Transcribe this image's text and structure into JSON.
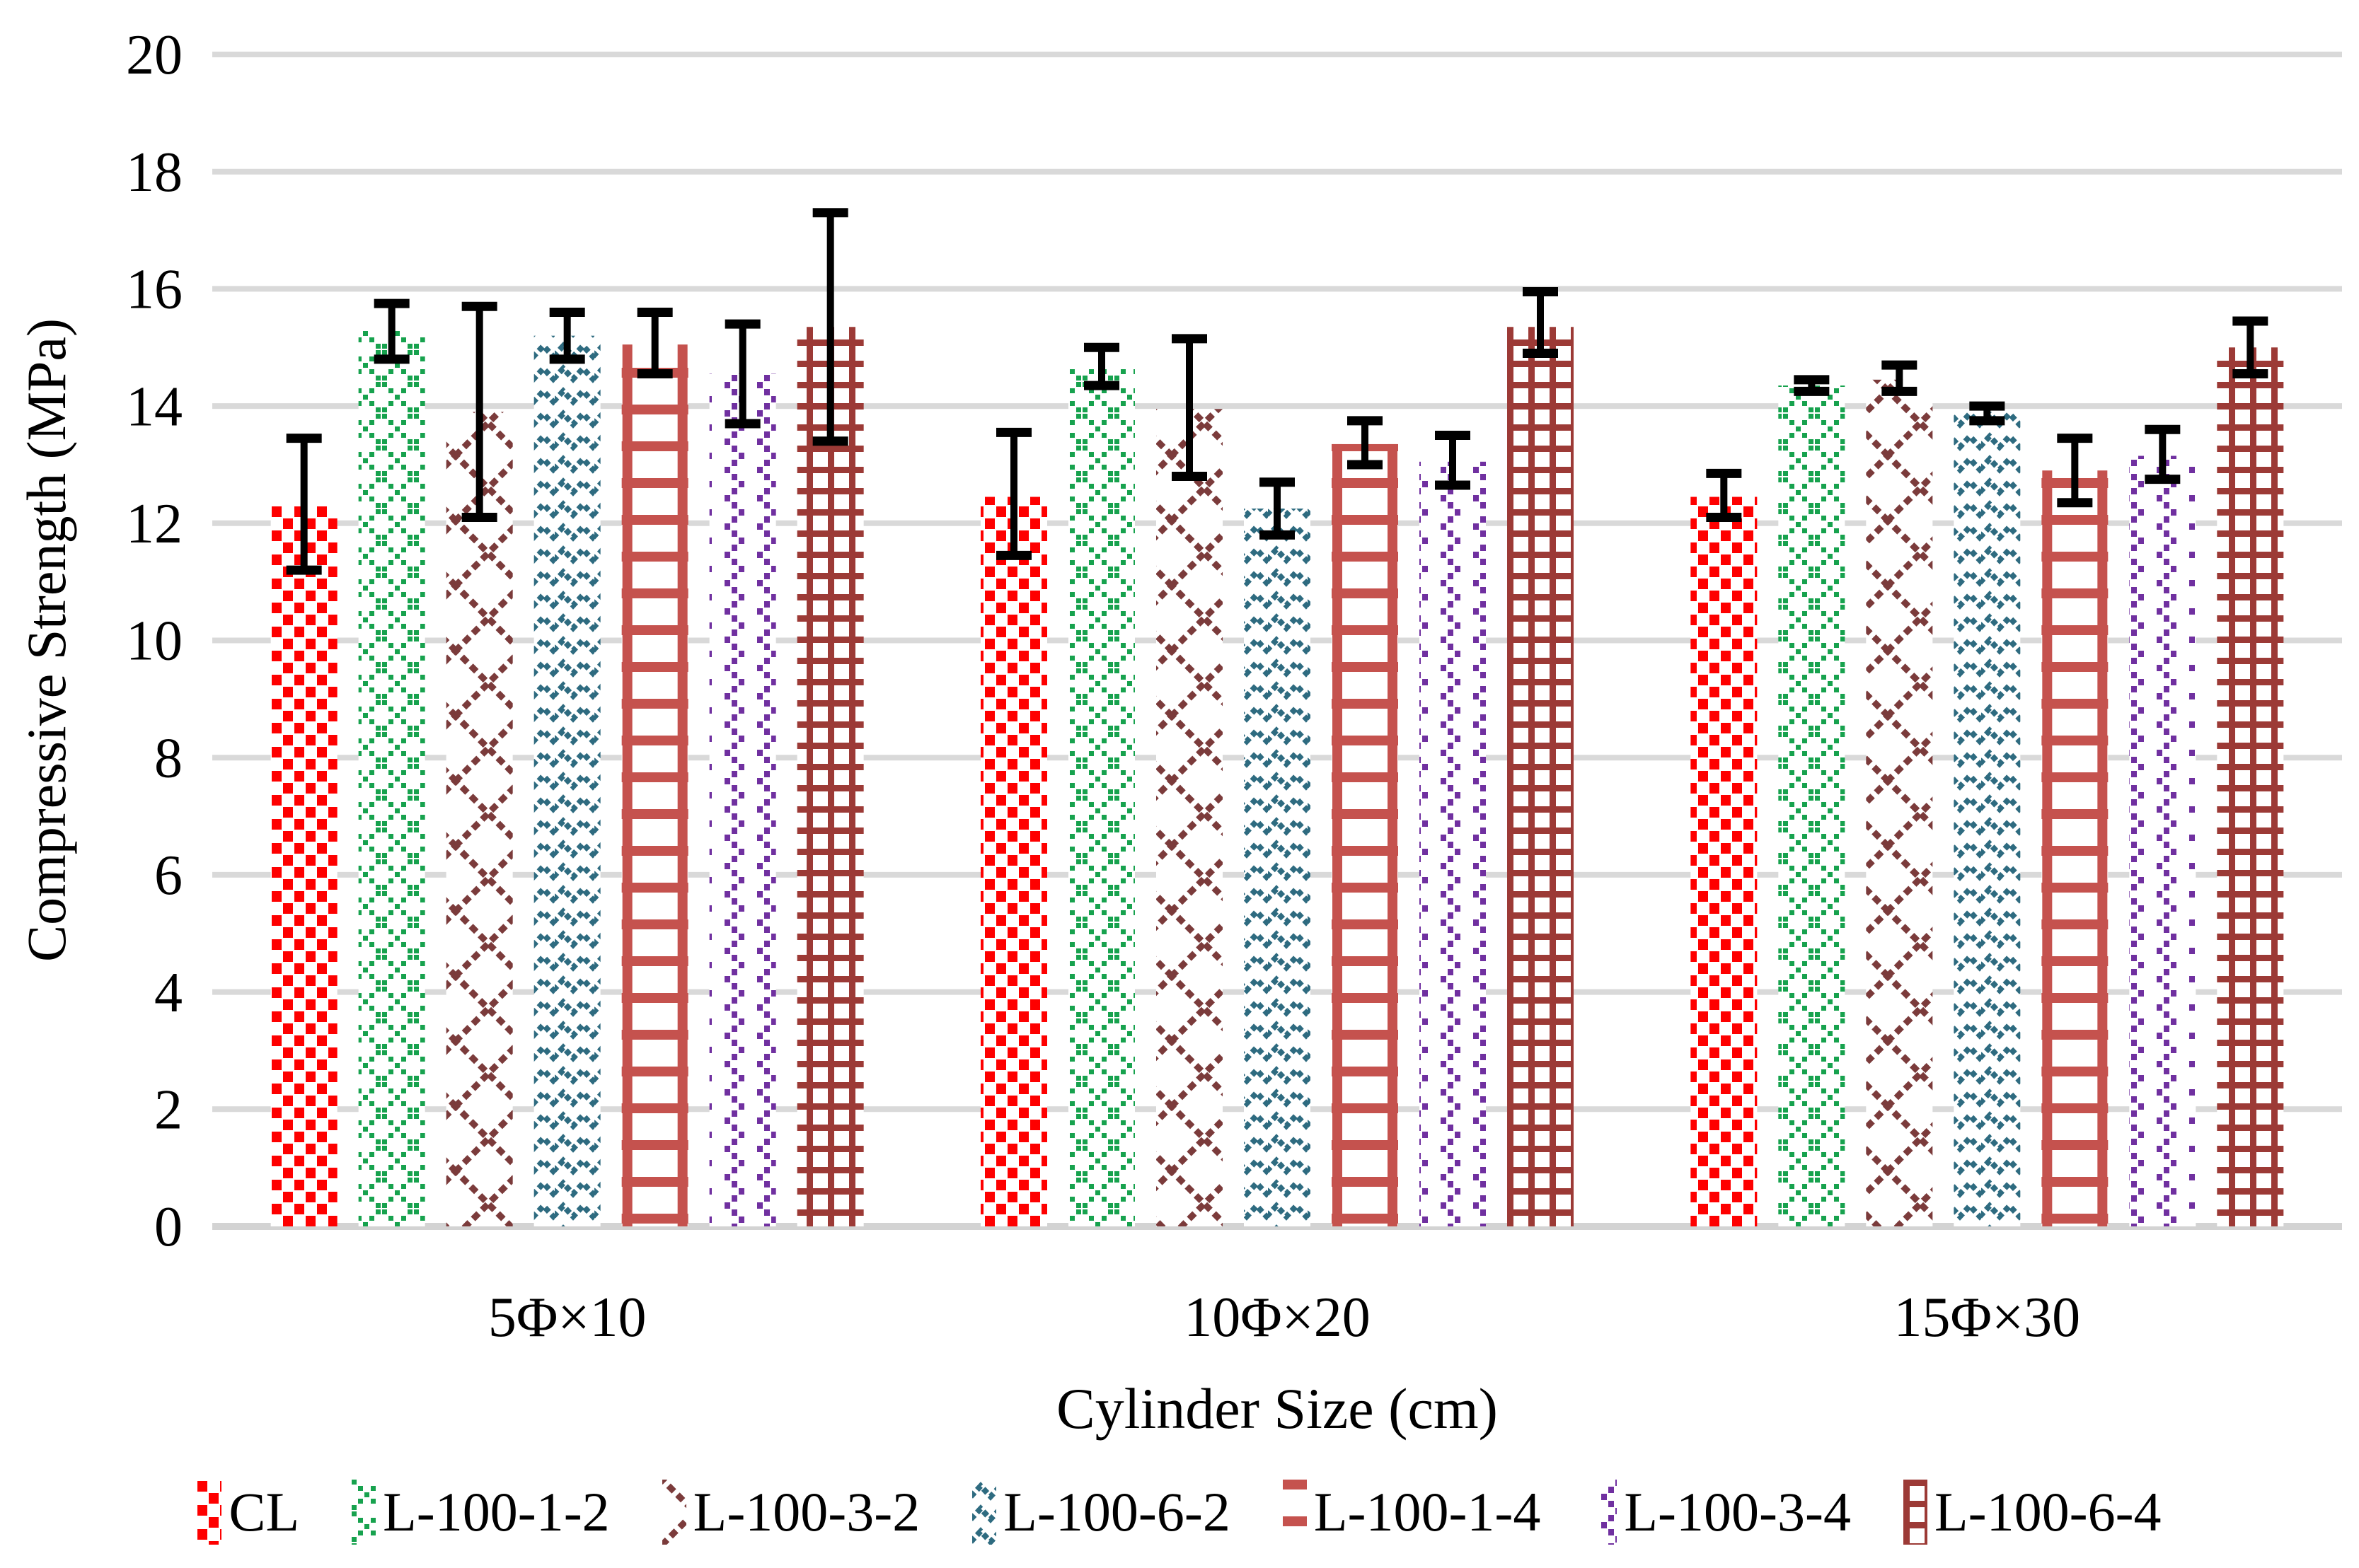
{
  "figure": {
    "background": "#FFFFFF",
    "text_color": "#000000"
  },
  "chart_data": {
    "type": "bar",
    "title": "",
    "xlabel": "Cylinder Size (cm)",
    "ylabel": "Compressive Strength (MPa)",
    "ylim": [
      0,
      20
    ],
    "yticks": [
      0,
      2,
      4,
      6,
      8,
      10,
      12,
      14,
      16,
      18,
      20
    ],
    "grid": true,
    "gridline_color": "#D9D9D9",
    "axis_line_color": "#D3D3D3",
    "error_bar_color": "#000000",
    "legend_position": "bottom",
    "categories": [
      "5Φ×10",
      "10Φ×20",
      "15Φ×30"
    ],
    "series": [
      {
        "name": "CL",
        "color": "#FE0000",
        "pattern": "speckle",
        "values": [
          12.3,
          12.45,
          12.45
        ],
        "error_low": [
          11.2,
          11.45,
          12.1
        ],
        "error_high": [
          13.45,
          13.55,
          12.85
        ]
      },
      {
        "name": "L-100-1-2",
        "color": "#17A24E",
        "pattern": "trellis",
        "values": [
          15.3,
          14.65,
          14.35
        ],
        "error_low": [
          14.8,
          14.35,
          14.25
        ],
        "error_high": [
          15.75,
          15.0,
          14.45
        ]
      },
      {
        "name": "L-100-3-2",
        "color": "#7B3B3B",
        "pattern": "open-diamond",
        "values": [
          13.9,
          13.95,
          14.45
        ],
        "error_low": [
          12.1,
          12.8,
          14.25
        ],
        "error_high": [
          15.7,
          15.15,
          14.7
        ]
      },
      {
        "name": "L-100-6-2",
        "color": "#2E6B80",
        "pattern": "wave",
        "values": [
          15.2,
          12.25,
          13.9
        ],
        "error_low": [
          14.8,
          11.8,
          13.75
        ],
        "error_high": [
          15.6,
          12.7,
          14.0
        ]
      },
      {
        "name": "L-100-1-4",
        "color": "#C5524E",
        "pattern": "ladder",
        "values": [
          15.05,
          13.35,
          12.9
        ],
        "error_low": [
          14.55,
          13.0,
          12.35
        ],
        "error_high": [
          15.6,
          13.75,
          13.45
        ]
      },
      {
        "name": "L-100-3-4",
        "color": "#7030A0",
        "pattern": "chain",
        "values": [
          14.55,
          13.05,
          13.15
        ],
        "error_low": [
          13.7,
          12.65,
          12.75
        ],
        "error_high": [
          15.4,
          13.5,
          13.6
        ]
      },
      {
        "name": "L-100-6-4",
        "color": "#9C3A36",
        "pattern": "grid",
        "values": [
          15.35,
          15.35,
          15.0
        ],
        "error_low": [
          13.4,
          14.9,
          14.55
        ],
        "error_high": [
          17.3,
          15.95,
          15.45
        ]
      }
    ]
  }
}
